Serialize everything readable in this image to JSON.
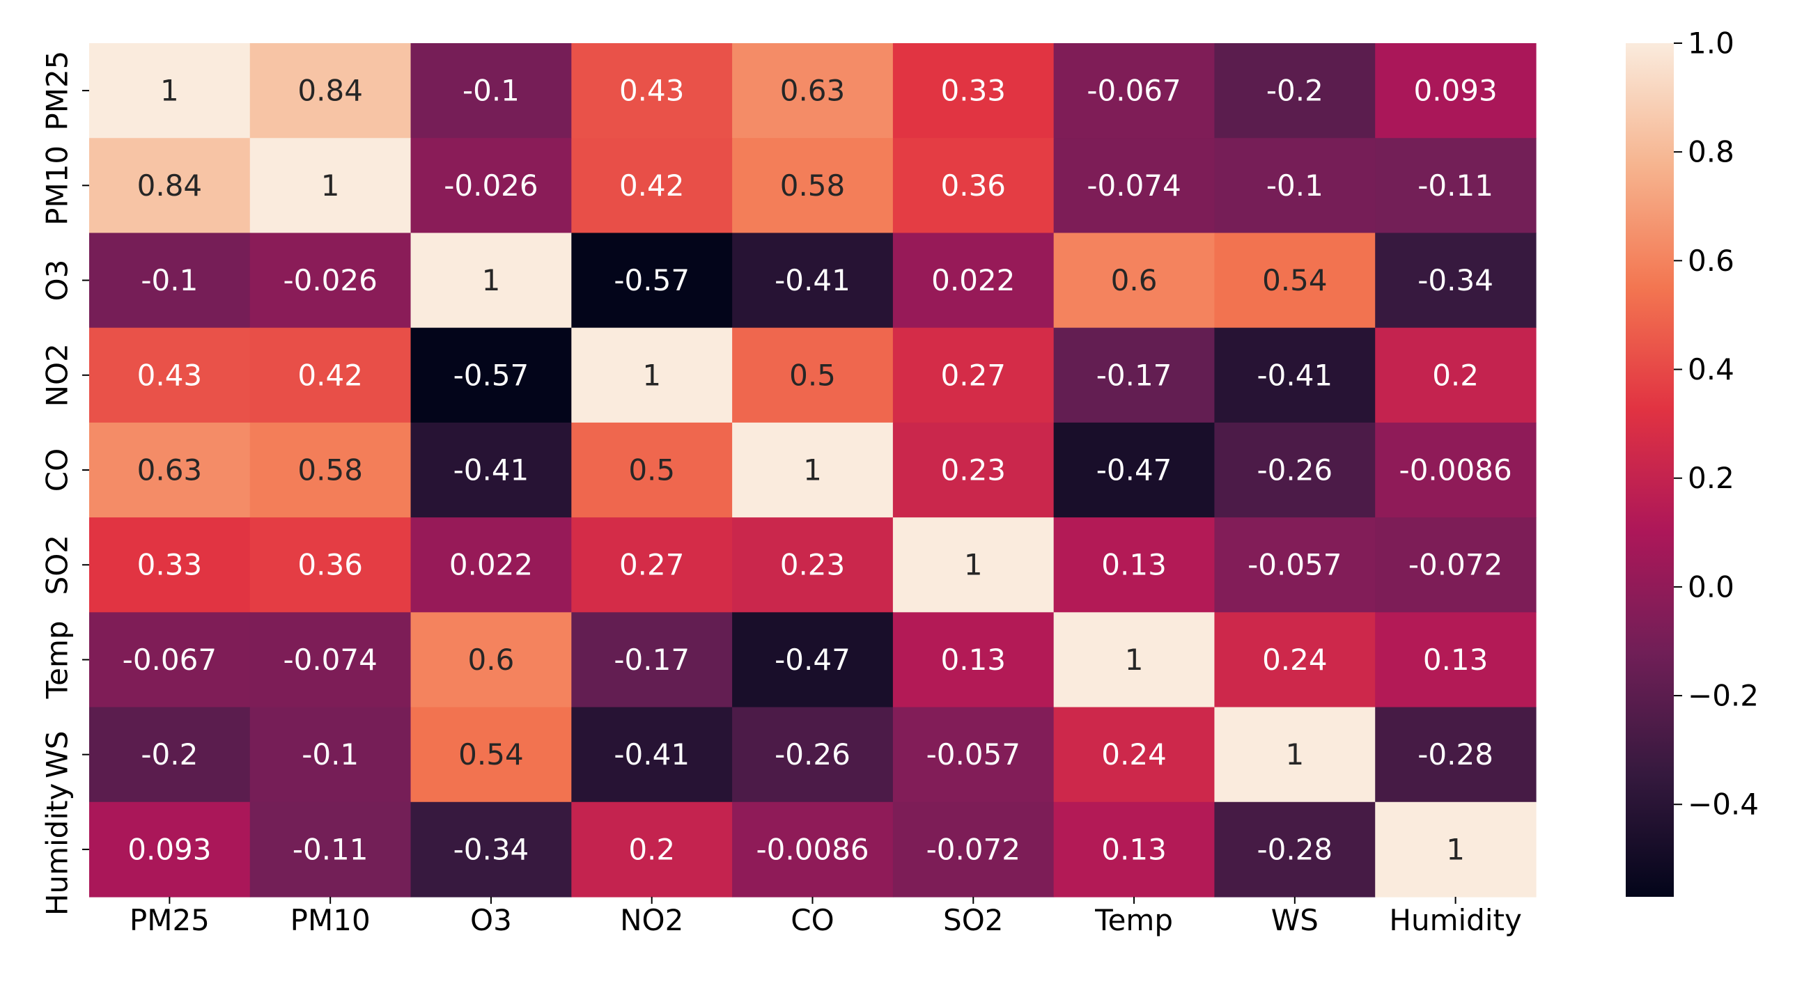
{
  "chart_data": {
    "type": "heatmap",
    "title": "",
    "xlabel": "",
    "ylabel": "",
    "x_labels": [
      "PM25",
      "PM10",
      "O3",
      "NO2",
      "CO",
      "SO2",
      "Temp",
      "WS",
      "Humidity"
    ],
    "y_labels": [
      "PM25",
      "PM10",
      "O3",
      "NO2",
      "CO",
      "SO2",
      "Temp",
      "WS",
      "Humidity"
    ],
    "values": [
      [
        1,
        0.84,
        -0.1,
        0.43,
        0.63,
        0.33,
        -0.067,
        -0.2,
        0.093
      ],
      [
        0.84,
        1,
        -0.026,
        0.42,
        0.58,
        0.36,
        -0.074,
        -0.1,
        -0.11
      ],
      [
        -0.1,
        -0.026,
        1,
        -0.57,
        -0.41,
        0.022,
        0.6,
        0.54,
        -0.34
      ],
      [
        0.43,
        0.42,
        -0.57,
        1,
        0.5,
        0.27,
        -0.17,
        -0.41,
        0.2
      ],
      [
        0.63,
        0.58,
        -0.41,
        0.5,
        1,
        0.23,
        -0.47,
        -0.26,
        -0.0086
      ],
      [
        0.33,
        0.36,
        0.022,
        0.27,
        0.23,
        1,
        0.13,
        -0.057,
        -0.072
      ],
      [
        -0.067,
        -0.074,
        0.6,
        -0.17,
        -0.47,
        0.13,
        1,
        0.24,
        0.13
      ],
      [
        -0.2,
        -0.1,
        0.54,
        -0.41,
        -0.26,
        -0.057,
        0.24,
        1,
        -0.28
      ],
      [
        0.093,
        -0.11,
        -0.34,
        0.2,
        -0.0086,
        -0.072,
        0.13,
        -0.28,
        1
      ]
    ],
    "annotations": [
      [
        "1",
        "0.84",
        "-0.1",
        "0.43",
        "0.63",
        "0.33",
        "-0.067",
        "-0.2",
        "0.093"
      ],
      [
        "0.84",
        "1",
        "-0.026",
        "0.42",
        "0.58",
        "0.36",
        "-0.074",
        "-0.1",
        "-0.11"
      ],
      [
        "-0.1",
        "-0.026",
        "1",
        "-0.57",
        "-0.41",
        "0.022",
        "0.6",
        "0.54",
        "-0.34"
      ],
      [
        "0.43",
        "0.42",
        "-0.57",
        "1",
        "0.5",
        "0.27",
        "-0.17",
        "-0.41",
        "0.2"
      ],
      [
        "0.63",
        "0.58",
        "-0.41",
        "0.5",
        "1",
        "0.23",
        "-0.47",
        "-0.26",
        "-0.0086"
      ],
      [
        "0.33",
        "0.36",
        "0.022",
        "0.27",
        "0.23",
        "1",
        "0.13",
        "-0.057",
        "-0.072"
      ],
      [
        "-0.067",
        "-0.074",
        "0.6",
        "-0.17",
        "-0.47",
        "0.13",
        "1",
        "0.24",
        "0.13"
      ],
      [
        "-0.2",
        "-0.1",
        "0.54",
        "-0.41",
        "-0.26",
        "-0.057",
        "0.24",
        "1",
        "-0.28"
      ],
      [
        "0.093",
        "-0.11",
        "-0.34",
        "0.2",
        "-0.0086",
        "-0.072",
        "0.13",
        "-0.28",
        "1"
      ]
    ],
    "colorbar": {
      "vmin": -0.57,
      "vmax": 1.0,
      "ticks": [
        1.0,
        0.8,
        0.6,
        0.4,
        0.2,
        0.0,
        -0.2,
        -0.4
      ],
      "tick_labels": [
        "1.0",
        "0.8",
        "0.6",
        "0.4",
        "0.2",
        "0.0",
        "−0.2",
        "−0.4"
      ]
    },
    "colormap": {
      "name": "rocket",
      "stops": [
        "#03051a",
        "#35193e",
        "#701f57",
        "#ad1759",
        "#e13342",
        "#f37651",
        "#f6b48f",
        "#faebdd"
      ]
    },
    "grid": false,
    "legend": "none"
  }
}
